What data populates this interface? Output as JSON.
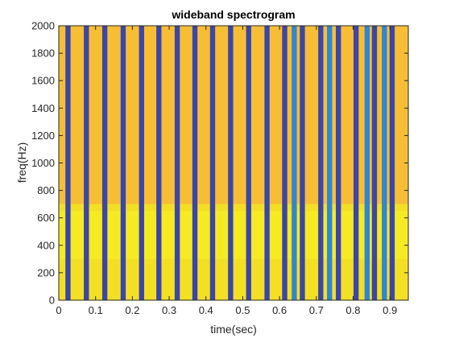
{
  "chart_data": {
    "type": "heatmap",
    "title": "wideband spectrogram",
    "xlabel": "time(sec)",
    "ylabel": "freq(Hz)",
    "xlim": [
      0,
      0.95
    ],
    "ylim": [
      0,
      2000
    ],
    "xticks": [
      0,
      0.1,
      0.2,
      0.3,
      0.4,
      0.5,
      0.6,
      0.7,
      0.8,
      0.9
    ],
    "xtick_labels": [
      "0",
      "0.1",
      "0.2",
      "0.3",
      "0.4",
      "0.5",
      "0.6",
      "0.7",
      "0.8",
      "0.9"
    ],
    "yticks": [
      0,
      200,
      400,
      600,
      800,
      1000,
      1200,
      1400,
      1600,
      1800,
      2000
    ],
    "ytick_labels": [
      "0",
      "200",
      "400",
      "600",
      "800",
      "1000",
      "1200",
      "1400",
      "1600",
      "1800",
      "2000"
    ],
    "background_color": "#f7be35",
    "low_band_color": "#f3e025",
    "low_band_range_hz": [
      0,
      700
    ],
    "bright_band_range_hz": [
      300,
      650
    ],
    "dark_stripe_color": "#3b46a8",
    "light_stripe_color": "#2f86d6",
    "stripe_width_sec": 0.014,
    "dark_stripes_sec": [
      0.025,
      0.075,
      0.125,
      0.175,
      0.225,
      0.272,
      0.322,
      0.37,
      0.418,
      0.467,
      0.516,
      0.566,
      0.614,
      0.662,
      0.712,
      0.76,
      0.808,
      0.858,
      0.906
    ],
    "light_stripes_sec": [
      0.64,
      0.736,
      0.838,
      0.885
    ]
  }
}
